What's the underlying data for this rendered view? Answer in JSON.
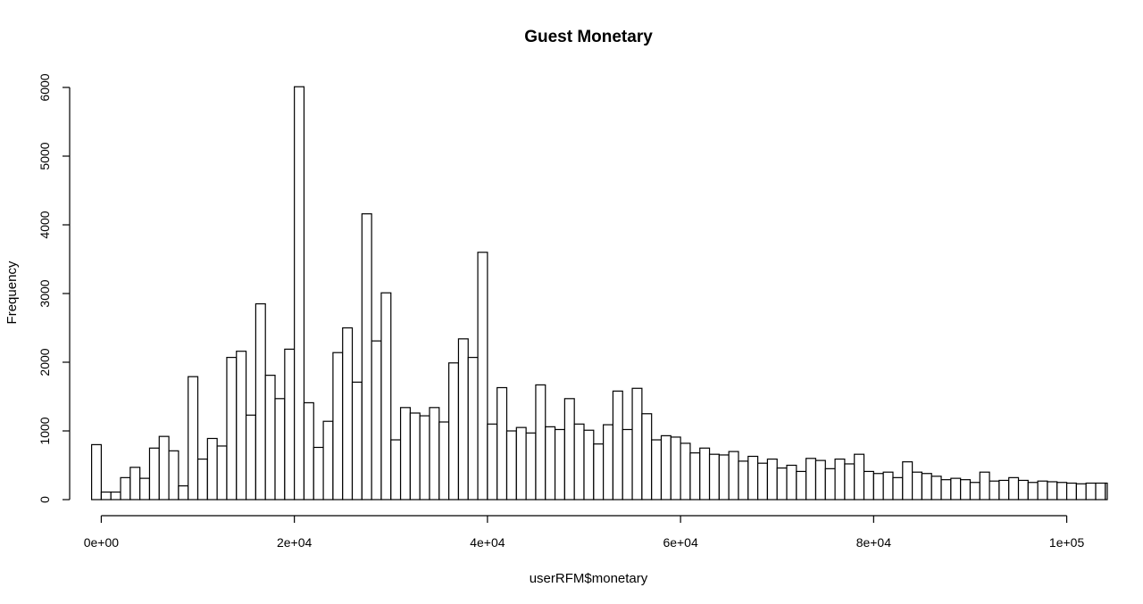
{
  "chart_data": {
    "type": "bar",
    "title": "Guest Monetary",
    "xlabel": "userRFM$monetary",
    "ylabel": "Frequency",
    "xlim": [
      -500,
      104200
    ],
    "ylim": [
      0,
      6000
    ],
    "x_ticks": [
      {
        "value": 0,
        "label": "0e+00"
      },
      {
        "value": 20000,
        "label": "2e+04"
      },
      {
        "value": 40000,
        "label": "4e+04"
      },
      {
        "value": 60000,
        "label": "6e+04"
      },
      {
        "value": 80000,
        "label": "8e+04"
      },
      {
        "value": 100000,
        "label": "1e+05"
      }
    ],
    "y_ticks": [
      {
        "value": 0,
        "label": "0"
      },
      {
        "value": 1000,
        "label": "1000"
      },
      {
        "value": 2000,
        "label": "2000"
      },
      {
        "value": 3000,
        "label": "3000"
      },
      {
        "value": 4000,
        "label": "4000"
      },
      {
        "value": 5000,
        "label": "5000"
      },
      {
        "value": 6000,
        "label": "6000"
      }
    ],
    "bin_start": -1000,
    "bin_width": 1000,
    "values": [
      800,
      110,
      110,
      320,
      470,
      310,
      750,
      920,
      710,
      200,
      1790,
      590,
      890,
      780,
      2070,
      2160,
      1230,
      2850,
      1810,
      1470,
      2190,
      6010,
      1410,
      760,
      1140,
      2140,
      2500,
      1710,
      4160,
      2310,
      3010,
      870,
      1340,
      1260,
      1220,
      1340,
      1130,
      1990,
      2340,
      2070,
      3600,
      1100,
      1630,
      1000,
      1050,
      970,
      1670,
      1060,
      1020,
      1470,
      1100,
      1010,
      810,
      1090,
      1580,
      1020,
      1620,
      1250,
      870,
      930,
      910,
      820,
      680,
      750,
      660,
      650,
      700,
      560,
      630,
      530,
      590,
      460,
      500,
      410,
      600,
      570,
      450,
      590,
      520,
      660,
      410,
      380,
      400,
      320,
      550,
      400,
      380,
      340,
      290,
      310,
      290,
      250,
      400,
      270,
      280,
      320,
      280,
      250,
      270,
      260,
      250,
      240,
      230,
      240,
      240,
      240
    ]
  }
}
